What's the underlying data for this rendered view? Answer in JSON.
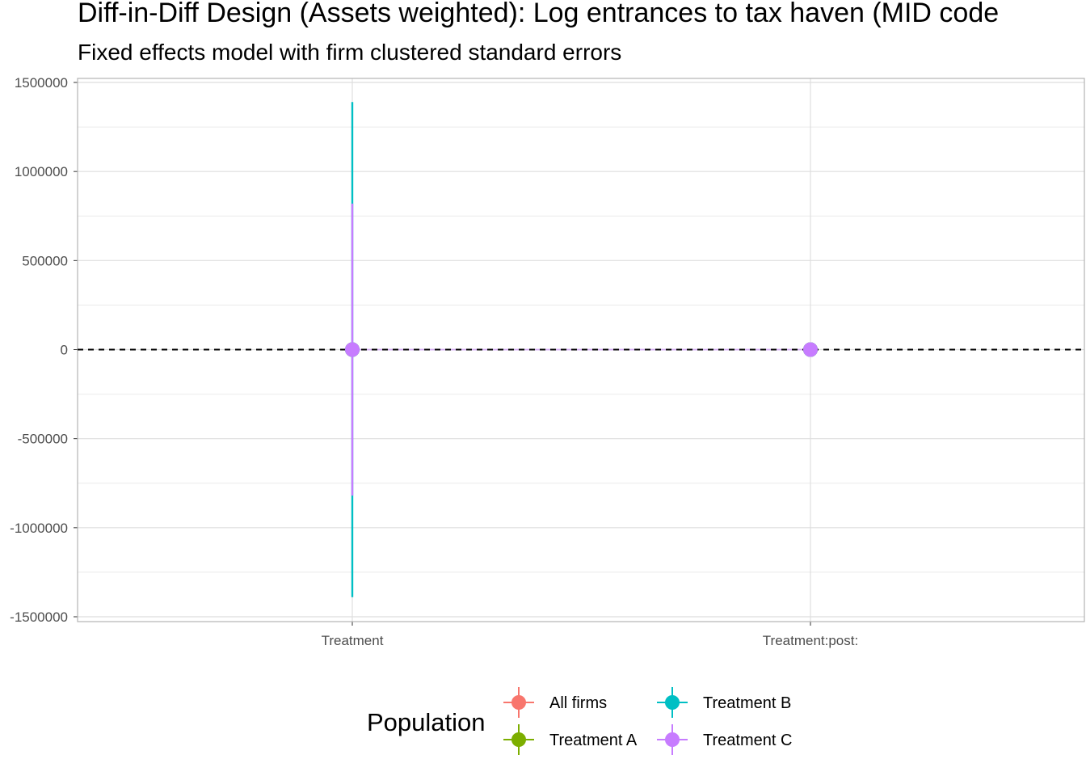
{
  "chart_data": {
    "type": "scatter",
    "title": "Diff-in-Diff Design (Assets weighted): Log entrances to tax haven (MID code",
    "subtitle": "Fixed effects model with firm clustered standard errors",
    "xlabel": "",
    "ylabel": "",
    "categories": [
      "Treatment",
      "Treatment:post:"
    ],
    "ylim": [
      -1530000,
      1500000
    ],
    "yticks": [
      1500000,
      1000000,
      500000,
      0,
      -500000,
      -1000000,
      -1500000
    ],
    "ytick_labels": [
      "1500000",
      "1000000",
      "500000",
      "0",
      "-500000",
      "-1000000",
      "-1500000"
    ],
    "reference_line": {
      "y": 0,
      "style": "dashed",
      "color": "#000000"
    },
    "grid": true,
    "legend": {
      "title": "Population",
      "position": "bottom",
      "columns": 2
    },
    "series": [
      {
        "name": "All firms",
        "color": "#F8766D",
        "points": [
          {
            "x": "Treatment",
            "y": 0,
            "ymin": 0,
            "ymax": 0
          },
          {
            "x": "Treatment:post:",
            "y": 0,
            "ymin": 0,
            "ymax": 0
          }
        ]
      },
      {
        "name": "Treatment A",
        "color": "#7CAE00",
        "points": [
          {
            "x": "Treatment",
            "y": 0,
            "ymin": 0,
            "ymax": 0
          },
          {
            "x": "Treatment:post:",
            "y": 0,
            "ymin": 0,
            "ymax": 0
          }
        ]
      },
      {
        "name": "Treatment B",
        "color": "#00BFC4",
        "points": [
          {
            "x": "Treatment",
            "y": 0,
            "ymin": -1390000,
            "ymax": 1390000
          },
          {
            "x": "Treatment:post:",
            "y": 0,
            "ymin": 0,
            "ymax": 0
          }
        ]
      },
      {
        "name": "Treatment C",
        "color": "#C77CFF",
        "points": [
          {
            "x": "Treatment",
            "y": 0,
            "ymin": -820000,
            "ymax": 820000
          },
          {
            "x": "Treatment:post:",
            "y": 0,
            "ymin": 0,
            "ymax": 0
          }
        ]
      }
    ]
  }
}
